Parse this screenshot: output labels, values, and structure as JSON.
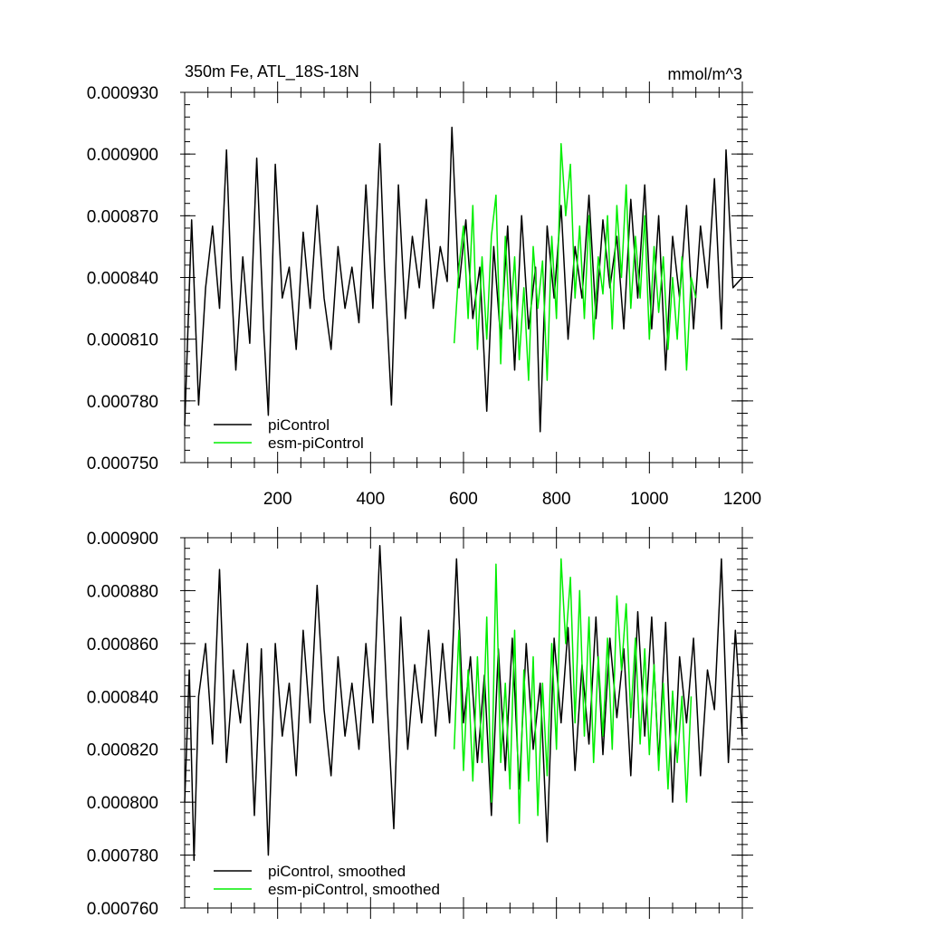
{
  "colors": {
    "piControl": "#000000",
    "esm_piControl": "#00ee00",
    "background": "#ffffff"
  },
  "chart_data": [
    {
      "type": "line",
      "title": "350m Fe, ATL_18S-18N",
      "units": "mmol/m^3",
      "xlim": [
        0,
        1200
      ],
      "ylim": [
        0.00075,
        0.00093
      ],
      "xticks": [
        200,
        400,
        600,
        800,
        1000,
        1200
      ],
      "xtick_labels": [
        "200",
        "400",
        "600",
        "800",
        "1000",
        "1200"
      ],
      "yticks": [
        0.00075,
        0.00078,
        0.00081,
        0.00084,
        0.00087,
        0.0009,
        0.00093
      ],
      "ytick_labels": [
        "0.000750",
        "0.000780",
        "0.000810",
        "0.000840",
        "0.000870",
        "0.000900",
        "0.000930"
      ],
      "legend": [
        "piControl",
        "esm-piControl"
      ],
      "legend_position": "bottom-left",
      "series": [
        {
          "name": "piControl",
          "color": "#000000",
          "x": [
            0,
            15,
            30,
            45,
            60,
            75,
            90,
            100,
            110,
            125,
            140,
            155,
            170,
            180,
            195,
            210,
            225,
            240,
            255,
            270,
            285,
            300,
            315,
            330,
            345,
            360,
            375,
            390,
            405,
            420,
            430,
            445,
            460,
            475,
            490,
            505,
            520,
            535,
            550,
            565,
            575,
            590,
            605,
            620,
            635,
            650,
            665,
            680,
            695,
            710,
            725,
            740,
            755,
            765,
            780,
            795,
            810,
            825,
            840,
            855,
            870,
            885,
            900,
            915,
            930,
            945,
            960,
            975,
            990,
            1005,
            1020,
            1035,
            1050,
            1065,
            1080,
            1095,
            1110,
            1125,
            1140,
            1155,
            1165,
            1180,
            1200
          ],
          "values": [
            0.000768,
            0.000868,
            0.000778,
            0.000835,
            0.000865,
            0.000825,
            0.000902,
            0.00084,
            0.000795,
            0.00085,
            0.000808,
            0.000898,
            0.000815,
            0.000773,
            0.000895,
            0.00083,
            0.000845,
            0.000805,
            0.000862,
            0.000825,
            0.000875,
            0.00083,
            0.000805,
            0.000855,
            0.000825,
            0.000845,
            0.000818,
            0.000885,
            0.000825,
            0.000905,
            0.000845,
            0.000778,
            0.000885,
            0.00082,
            0.00086,
            0.000835,
            0.000878,
            0.000825,
            0.000855,
            0.000838,
            0.000913,
            0.000835,
            0.000868,
            0.00082,
            0.000845,
            0.000775,
            0.000855,
            0.00081,
            0.000865,
            0.000795,
            0.00087,
            0.000815,
            0.000845,
            0.000765,
            0.000865,
            0.00083,
            0.000875,
            0.00081,
            0.000855,
            0.00083,
            0.00088,
            0.00082,
            0.000868,
            0.000835,
            0.00086,
            0.000815,
            0.000878,
            0.00083,
            0.000885,
            0.000815,
            0.00087,
            0.000795,
            0.00086,
            0.00083,
            0.000875,
            0.000815,
            0.000865,
            0.000835,
            0.000888,
            0.000815,
            0.000902,
            0.000835,
            0.00084
          ]
        },
        {
          "name": "esm-piControl",
          "color": "#00ee00",
          "x": [
            580,
            590,
            600,
            610,
            620,
            630,
            640,
            650,
            660,
            670,
            680,
            690,
            700,
            710,
            720,
            730,
            740,
            750,
            760,
            770,
            780,
            790,
            800,
            810,
            820,
            830,
            840,
            850,
            860,
            870,
            880,
            890,
            900,
            910,
            920,
            930,
            940,
            950,
            960,
            970,
            980,
            990,
            1000,
            1010,
            1020,
            1030,
            1040,
            1050,
            1060,
            1070,
            1080,
            1090,
            1100
          ],
          "values": [
            0.000808,
            0.000845,
            0.000865,
            0.00082,
            0.000875,
            0.000805,
            0.00085,
            0.00081,
            0.00086,
            0.00088,
            0.000798,
            0.00086,
            0.000815,
            0.00085,
            0.0008,
            0.000835,
            0.00079,
            0.000855,
            0.000825,
            0.000848,
            0.00079,
            0.00086,
            0.00082,
            0.000905,
            0.00087,
            0.000895,
            0.00083,
            0.000865,
            0.00082,
            0.00087,
            0.00081,
            0.00085,
            0.000832,
            0.00087,
            0.000815,
            0.000875,
            0.00084,
            0.000885,
            0.000825,
            0.00086,
            0.00083,
            0.00087,
            0.00081,
            0.000855,
            0.000823,
            0.00085,
            0.000805,
            0.00084,
            0.00081,
            0.00085,
            0.000795,
            0.00084,
            0.00083
          ]
        }
      ]
    },
    {
      "type": "line",
      "title": "",
      "xlim": [
        0,
        1200
      ],
      "ylim": [
        0.00076,
        0.0009
      ],
      "xticks": [
        200,
        400,
        600,
        800,
        1000,
        1200
      ],
      "yticks": [
        0.00076,
        0.00078,
        0.0008,
        0.00082,
        0.00084,
        0.00086,
        0.00088,
        0.0009
      ],
      "ytick_labels": [
        "0.000760",
        "0.000780",
        "0.000800",
        "0.000820",
        "0.000840",
        "0.000860",
        "0.000880",
        "0.000900"
      ],
      "legend": [
        "piControl, smoothed",
        "esm-piControl, smoothed"
      ],
      "legend_position": "bottom-left",
      "series": [
        {
          "name": "piControl, smoothed",
          "color": "#000000",
          "x": [
            0,
            10,
            20,
            30,
            45,
            60,
            75,
            90,
            105,
            120,
            135,
            150,
            165,
            180,
            195,
            210,
            225,
            240,
            255,
            270,
            285,
            300,
            315,
            330,
            345,
            360,
            375,
            390,
            405,
            420,
            435,
            450,
            465,
            480,
            495,
            510,
            525,
            540,
            555,
            570,
            585,
            600,
            615,
            630,
            645,
            660,
            675,
            690,
            705,
            720,
            735,
            750,
            765,
            780,
            795,
            810,
            825,
            840,
            855,
            870,
            885,
            900,
            915,
            930,
            945,
            960,
            975,
            990,
            1005,
            1020,
            1035,
            1050,
            1065,
            1080,
            1095,
            1110,
            1125,
            1140,
            1155,
            1170,
            1185,
            1200
          ],
          "values": [
            0.0008,
            0.00085,
            0.000778,
            0.00084,
            0.00086,
            0.000822,
            0.000888,
            0.000815,
            0.00085,
            0.00083,
            0.00086,
            0.000795,
            0.000858,
            0.00078,
            0.00086,
            0.000825,
            0.000845,
            0.00081,
            0.000865,
            0.00083,
            0.000882,
            0.000835,
            0.00081,
            0.000855,
            0.000825,
            0.000845,
            0.00082,
            0.00086,
            0.00083,
            0.000897,
            0.00084,
            0.00079,
            0.00087,
            0.00082,
            0.000852,
            0.00083,
            0.000865,
            0.000825,
            0.00086,
            0.00083,
            0.000892,
            0.00083,
            0.000855,
            0.000815,
            0.000848,
            0.000795,
            0.000858,
            0.000812,
            0.000862,
            0.000805,
            0.00086,
            0.00082,
            0.000845,
            0.000785,
            0.000862,
            0.00083,
            0.000866,
            0.000812,
            0.000852,
            0.000822,
            0.00087,
            0.000818,
            0.000862,
            0.000832,
            0.000858,
            0.00081,
            0.000872,
            0.000825,
            0.00087,
            0.000815,
            0.000868,
            0.0008,
            0.000855,
            0.00083,
            0.000862,
            0.00081,
            0.00085,
            0.000835,
            0.000892,
            0.000815,
            0.000865,
            0.000825
          ]
        },
        {
          "name": "esm-piControl, smoothed",
          "color": "#00ee00",
          "x": [
            580,
            590,
            600,
            610,
            620,
            630,
            640,
            650,
            660,
            670,
            680,
            690,
            700,
            710,
            720,
            730,
            740,
            750,
            760,
            770,
            780,
            790,
            800,
            810,
            820,
            830,
            840,
            850,
            860,
            870,
            880,
            890,
            900,
            910,
            920,
            930,
            940,
            950,
            960,
            970,
            980,
            990,
            1000,
            1010,
            1020,
            1030,
            1040,
            1050,
            1060,
            1070,
            1080,
            1090
          ],
          "values": [
            0.00082,
            0.000865,
            0.000812,
            0.00085,
            0.000808,
            0.000855,
            0.000815,
            0.00087,
            0.0008,
            0.00089,
            0.000815,
            0.000845,
            0.000805,
            0.000865,
            0.000792,
            0.00085,
            0.000808,
            0.000855,
            0.000795,
            0.000845,
            0.00081,
            0.00086,
            0.00082,
            0.000892,
            0.00086,
            0.000885,
            0.00083,
            0.00088,
            0.000825,
            0.00087,
            0.000815,
            0.000855,
            0.000825,
            0.000862,
            0.00082,
            0.000878,
            0.00085,
            0.000875,
            0.000832,
            0.000862,
            0.000822,
            0.000858,
            0.000818,
            0.000852,
            0.000812,
            0.000845,
            0.000805,
            0.000842,
            0.000815,
            0.00084,
            0.0008,
            0.00084
          ]
        }
      ]
    }
  ]
}
